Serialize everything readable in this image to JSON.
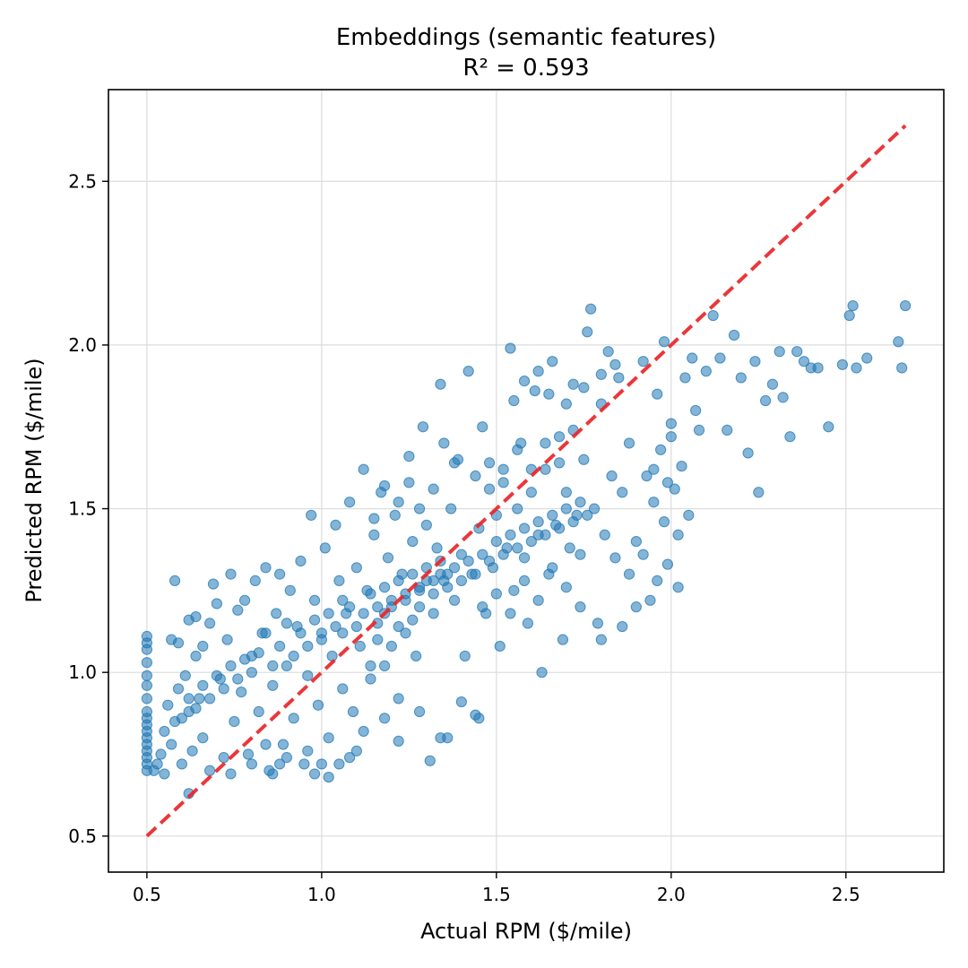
{
  "chart_data": {
    "type": "scatter",
    "title": "Embeddings (semantic features)",
    "subtitle": "R² = 0.593",
    "xlabel": "Actual RPM ($/mile)",
    "ylabel": "Predicted RPM ($/mile)",
    "xlim": [
      0.39,
      2.78
    ],
    "ylim": [
      0.39,
      2.78
    ],
    "xticks": [
      0.5,
      1.0,
      1.5,
      2.0,
      2.5
    ],
    "yticks": [
      0.5,
      1.0,
      1.5,
      2.0,
      2.5
    ],
    "xtick_labels": [
      "0.5",
      "1.0",
      "1.5",
      "2.0",
      "2.5"
    ],
    "ytick_labels": [
      "0.5",
      "1.0",
      "1.5",
      "2.0",
      "2.5"
    ],
    "grid": true,
    "point_color": "#1f77b4",
    "point_alpha": 0.55,
    "reference_line": {
      "x": [
        0.5,
        2.67
      ],
      "y": [
        0.5,
        2.67
      ],
      "color": "#e8262a",
      "style": "dashed"
    },
    "points": [
      [
        0.5,
        0.7
      ],
      [
        0.5,
        0.72
      ],
      [
        0.5,
        0.74
      ],
      [
        0.5,
        0.76
      ],
      [
        0.5,
        0.78
      ],
      [
        0.5,
        0.8
      ],
      [
        0.5,
        0.82
      ],
      [
        0.5,
        0.84
      ],
      [
        0.5,
        0.86
      ],
      [
        0.5,
        0.88
      ],
      [
        0.5,
        0.92
      ],
      [
        0.5,
        0.96
      ],
      [
        0.5,
        0.99
      ],
      [
        0.5,
        1.03
      ],
      [
        0.5,
        1.07
      ],
      [
        0.5,
        1.09
      ],
      [
        0.5,
        1.11
      ],
      [
        0.52,
        0.7
      ],
      [
        0.53,
        0.72
      ],
      [
        0.54,
        0.75
      ],
      [
        0.55,
        0.69
      ],
      [
        0.55,
        0.82
      ],
      [
        0.56,
        0.9
      ],
      [
        0.57,
        0.78
      ],
      [
        0.58,
        0.85
      ],
      [
        0.59,
        0.95
      ],
      [
        0.6,
        0.72
      ],
      [
        0.61,
        0.99
      ],
      [
        0.62,
        0.88
      ],
      [
        0.63,
        0.76
      ],
      [
        0.64,
        1.05
      ],
      [
        0.65,
        0.92
      ],
      [
        0.66,
        0.8
      ],
      [
        0.57,
        1.1
      ],
      [
        0.58,
        1.28
      ],
      [
        0.59,
        1.09
      ],
      [
        0.62,
        1.16
      ],
      [
        0.64,
        1.17
      ],
      [
        0.66,
        1.08
      ],
      [
        0.68,
        1.15
      ],
      [
        0.69,
        1.27
      ],
      [
        0.7,
        1.21
      ],
      [
        0.71,
        0.98
      ],
      [
        0.72,
        0.74
      ],
      [
        0.73,
        1.1
      ],
      [
        0.74,
        1.3
      ],
      [
        0.75,
        0.85
      ],
      [
        0.76,
        1.19
      ],
      [
        0.77,
        0.94
      ],
      [
        0.78,
        1.22
      ],
      [
        0.79,
        0.75
      ],
      [
        0.8,
        1.05
      ],
      [
        0.81,
        1.28
      ],
      [
        0.82,
        0.88
      ],
      [
        0.83,
        1.12
      ],
      [
        0.84,
        1.32
      ],
      [
        0.85,
        0.7
      ],
      [
        0.86,
        0.96
      ],
      [
        0.87,
        1.18
      ],
      [
        0.88,
        1.3
      ],
      [
        0.89,
        0.78
      ],
      [
        0.9,
        1.02
      ],
      [
        0.91,
        1.25
      ],
      [
        0.92,
        0.86
      ],
      [
        0.93,
        1.14
      ],
      [
        0.94,
        1.34
      ],
      [
        0.95,
        0.72
      ],
      [
        0.96,
        0.99
      ],
      [
        0.97,
        1.48
      ],
      [
        0.98,
        1.22
      ],
      [
        0.99,
        0.9
      ],
      [
        1.0,
        1.1
      ],
      [
        1.01,
        1.38
      ],
      [
        1.02,
        0.8
      ],
      [
        1.03,
        1.05
      ],
      [
        1.04,
        1.45
      ],
      [
        1.05,
        1.28
      ],
      [
        1.06,
        0.95
      ],
      [
        1.07,
        1.18
      ],
      [
        1.08,
        1.52
      ],
      [
        1.09,
        0.88
      ],
      [
        1.1,
        1.32
      ],
      [
        1.11,
        1.08
      ],
      [
        1.12,
        1.62
      ],
      [
        1.13,
        1.25
      ],
      [
        1.14,
        0.98
      ],
      [
        1.15,
        1.42
      ],
      [
        1.16,
        1.15
      ],
      [
        1.17,
        1.55
      ],
      [
        1.18,
        1.02
      ],
      [
        1.19,
        1.35
      ],
      [
        1.2,
        1.2
      ],
      [
        1.21,
        1.48
      ],
      [
        1.22,
        0.92
      ],
      [
        1.23,
        1.3
      ],
      [
        1.24,
        1.12
      ],
      [
        1.25,
        1.58
      ],
      [
        1.26,
        1.4
      ],
      [
        1.27,
        1.05
      ],
      [
        1.28,
        1.25
      ],
      [
        1.29,
        1.75
      ],
      [
        1.3,
        1.45
      ],
      [
        1.31,
        0.73
      ],
      [
        1.32,
        1.18
      ],
      [
        1.33,
        1.38
      ],
      [
        1.34,
        1.88
      ],
      [
        1.35,
        1.28
      ],
      [
        1.36,
        0.8
      ],
      [
        1.37,
        1.5
      ],
      [
        1.38,
        1.22
      ],
      [
        1.39,
        1.65
      ],
      [
        1.4,
        1.36
      ],
      [
        1.41,
        1.05
      ],
      [
        1.42,
        1.92
      ],
      [
        1.43,
        1.3
      ],
      [
        1.44,
        0.87
      ],
      [
        1.45,
        1.44
      ],
      [
        1.46,
        1.75
      ],
      [
        1.47,
        1.18
      ],
      [
        1.48,
        1.56
      ],
      [
        1.49,
        1.32
      ],
      [
        1.5,
        1.48
      ],
      [
        1.51,
        1.08
      ],
      [
        1.52,
        1.62
      ],
      [
        1.53,
        1.38
      ],
      [
        1.54,
        1.99
      ],
      [
        1.55,
        1.25
      ],
      [
        1.56,
        1.5
      ],
      [
        1.57,
        1.7
      ],
      [
        1.58,
        1.35
      ],
      [
        1.59,
        1.15
      ],
      [
        1.6,
        1.55
      ],
      [
        1.61,
        1.86
      ],
      [
        1.62,
        1.42
      ],
      [
        1.63,
        1.0
      ],
      [
        1.64,
        1.62
      ],
      [
        1.65,
        1.3
      ],
      [
        1.66,
        1.95
      ],
      [
        1.67,
        1.45
      ],
      [
        1.68,
        1.72
      ],
      [
        1.69,
        1.1
      ],
      [
        1.7,
        1.55
      ],
      [
        1.71,
        1.38
      ],
      [
        1.72,
        1.88
      ],
      [
        1.73,
        1.48
      ],
      [
        1.74,
        1.2
      ],
      [
        1.75,
        1.65
      ],
      [
        1.76,
        2.04
      ],
      [
        1.77,
        2.11
      ],
      [
        1.78,
        1.5
      ],
      [
        1.79,
        1.15
      ],
      [
        1.8,
        1.82
      ],
      [
        1.81,
        1.42
      ],
      [
        1.82,
        1.98
      ],
      [
        1.83,
        1.6
      ],
      [
        1.84,
        1.35
      ],
      [
        1.85,
        1.9
      ],
      [
        1.86,
        1.55
      ],
      [
        1.88,
        1.7
      ],
      [
        1.9,
        1.4
      ],
      [
        1.92,
        1.95
      ],
      [
        1.94,
        1.22
      ],
      [
        1.95,
        1.62
      ],
      [
        1.96,
        1.85
      ],
      [
        1.98,
        2.01
      ],
      [
        1.99,
        1.58
      ],
      [
        2.0,
        1.76
      ],
      [
        2.02,
        1.42
      ],
      [
        2.04,
        1.9
      ],
      [
        2.05,
        1.48
      ],
      [
        2.06,
        1.96
      ],
      [
        2.08,
        1.74
      ],
      [
        2.1,
        1.92
      ],
      [
        2.12,
        2.09
      ],
      [
        2.14,
        1.96
      ],
      [
        2.16,
        1.74
      ],
      [
        2.18,
        2.03
      ],
      [
        2.2,
        1.9
      ],
      [
        2.22,
        1.67
      ],
      [
        2.24,
        1.95
      ],
      [
        2.25,
        1.55
      ],
      [
        2.27,
        1.83
      ],
      [
        2.29,
        1.88
      ],
      [
        2.31,
        1.98
      ],
      [
        2.32,
        1.84
      ],
      [
        2.34,
        1.72
      ],
      [
        2.36,
        1.98
      ],
      [
        2.38,
        1.95
      ],
      [
        2.4,
        1.93
      ],
      [
        2.42,
        1.93
      ],
      [
        2.45,
        1.75
      ],
      [
        2.49,
        1.94
      ],
      [
        2.51,
        2.09
      ],
      [
        2.52,
        2.12
      ],
      [
        2.53,
        1.93
      ],
      [
        2.56,
        1.96
      ],
      [
        2.65,
        2.01
      ],
      [
        2.66,
        1.93
      ],
      [
        2.67,
        2.12
      ],
      [
        0.86,
        0.69
      ],
      [
        0.88,
        0.72
      ],
      [
        0.9,
        0.74
      ],
      [
        0.98,
        0.69
      ],
      [
        1.0,
        0.72
      ],
      [
        1.02,
        0.68
      ],
      [
        1.05,
        0.72
      ],
      [
        1.08,
        0.74
      ],
      [
        1.1,
        0.76
      ],
      [
        0.62,
        0.63
      ],
      [
        0.68,
        0.7
      ],
      [
        0.74,
        0.69
      ],
      [
        0.8,
        0.72
      ],
      [
        0.84,
        0.78
      ],
      [
        0.96,
        0.76
      ],
      [
        1.12,
        0.82
      ],
      [
        1.18,
        0.86
      ],
      [
        1.22,
        0.79
      ],
      [
        1.28,
        0.88
      ],
      [
        1.34,
        0.8
      ],
      [
        1.4,
        0.91
      ],
      [
        1.45,
        0.86
      ],
      [
        1.14,
        1.02
      ],
      [
        1.16,
        1.1
      ],
      [
        1.18,
        1.18
      ],
      [
        1.2,
        1.08
      ],
      [
        1.22,
        1.14
      ],
      [
        1.24,
        1.22
      ],
      [
        1.26,
        1.16
      ],
      [
        1.28,
        1.2
      ],
      [
        1.3,
        1.28
      ],
      [
        1.32,
        1.24
      ],
      [
        1.34,
        1.3
      ],
      [
        1.36,
        1.26
      ],
      [
        1.38,
        1.32
      ],
      [
        1.4,
        1.28
      ],
      [
        1.42,
        1.34
      ],
      [
        1.44,
        1.3
      ],
      [
        1.46,
        1.36
      ],
      [
        1.48,
        1.34
      ],
      [
        1.5,
        1.4
      ],
      [
        1.52,
        1.36
      ],
      [
        1.54,
        1.42
      ],
      [
        1.56,
        1.38
      ],
      [
        1.58,
        1.44
      ],
      [
        1.6,
        1.4
      ],
      [
        1.62,
        1.46
      ],
      [
        1.64,
        1.42
      ],
      [
        1.66,
        1.48
      ],
      [
        1.68,
        1.44
      ],
      [
        1.7,
        1.5
      ],
      [
        1.72,
        1.46
      ],
      [
        1.74,
        1.52
      ],
      [
        1.76,
        1.48
      ],
      [
        1.06,
        1.12
      ],
      [
        1.08,
        1.2
      ],
      [
        1.1,
        1.14
      ],
      [
        1.12,
        1.18
      ],
      [
        1.14,
        1.24
      ],
      [
        1.16,
        1.2
      ],
      [
        1.18,
        1.26
      ],
      [
        1.2,
        1.22
      ],
      [
        1.22,
        1.28
      ],
      [
        1.24,
        1.24
      ],
      [
        1.26,
        1.3
      ],
      [
        1.28,
        1.26
      ],
      [
        1.3,
        1.32
      ],
      [
        1.32,
        1.28
      ],
      [
        1.34,
        1.34
      ],
      [
        1.36,
        1.3
      ],
      [
        0.92,
        1.05
      ],
      [
        0.94,
        1.12
      ],
      [
        0.96,
        1.08
      ],
      [
        0.98,
        1.16
      ],
      [
        1.0,
        1.12
      ],
      [
        1.02,
        1.18
      ],
      [
        1.04,
        1.14
      ],
      [
        1.06,
        1.22
      ],
      [
        0.88,
        1.08
      ],
      [
        0.9,
        1.15
      ],
      [
        0.8,
        1.0
      ],
      [
        0.82,
        1.06
      ],
      [
        0.84,
        1.12
      ],
      [
        0.86,
        1.02
      ],
      [
        0.76,
        0.98
      ],
      [
        0.78,
        1.04
      ],
      [
        0.72,
        0.95
      ],
      [
        0.74,
        1.02
      ],
      [
        0.68,
        0.92
      ],
      [
        0.7,
        0.99
      ],
      [
        0.64,
        0.89
      ],
      [
        0.66,
        0.96
      ],
      [
        0.6,
        0.86
      ],
      [
        0.62,
        0.92
      ],
      [
        1.44,
        1.6
      ],
      [
        1.48,
        1.64
      ],
      [
        1.52,
        1.58
      ],
      [
        1.56,
        1.68
      ],
      [
        1.6,
        1.62
      ],
      [
        1.64,
        1.7
      ],
      [
        1.68,
        1.64
      ],
      [
        1.72,
        1.74
      ],
      [
        1.46,
        1.2
      ],
      [
        1.5,
        1.24
      ],
      [
        1.54,
        1.18
      ],
      [
        1.58,
        1.28
      ],
      [
        1.62,
        1.22
      ],
      [
        1.66,
        1.32
      ],
      [
        1.7,
        1.26
      ],
      [
        1.74,
        1.36
      ],
      [
        1.55,
        1.83
      ],
      [
        1.58,
        1.89
      ],
      [
        1.62,
        1.92
      ],
      [
        1.65,
        1.85
      ],
      [
        1.7,
        1.82
      ],
      [
        1.75,
        1.87
      ],
      [
        1.8,
        1.91
      ],
      [
        1.84,
        1.94
      ],
      [
        1.35,
        1.7
      ],
      [
        1.38,
        1.64
      ],
      [
        1.32,
        1.56
      ],
      [
        1.28,
        1.5
      ],
      [
        1.25,
        1.66
      ],
      [
        1.22,
        1.52
      ],
      [
        1.18,
        1.57
      ],
      [
        1.15,
        1.47
      ],
      [
        1.88,
        1.3
      ],
      [
        1.92,
        1.36
      ],
      [
        1.96,
        1.28
      ],
      [
        1.99,
        1.33
      ],
      [
        2.02,
        1.26
      ],
      [
        1.9,
        1.2
      ],
      [
        1.86,
        1.14
      ],
      [
        1.8,
        1.1
      ],
      [
        1.95,
        1.52
      ],
      [
        1.98,
        1.46
      ],
      [
        2.01,
        1.56
      ],
      [
        1.93,
        1.6
      ],
      [
        1.97,
        1.68
      ],
      [
        2.0,
        1.72
      ],
      [
        2.03,
        1.63
      ],
      [
        2.07,
        1.8
      ]
    ]
  }
}
